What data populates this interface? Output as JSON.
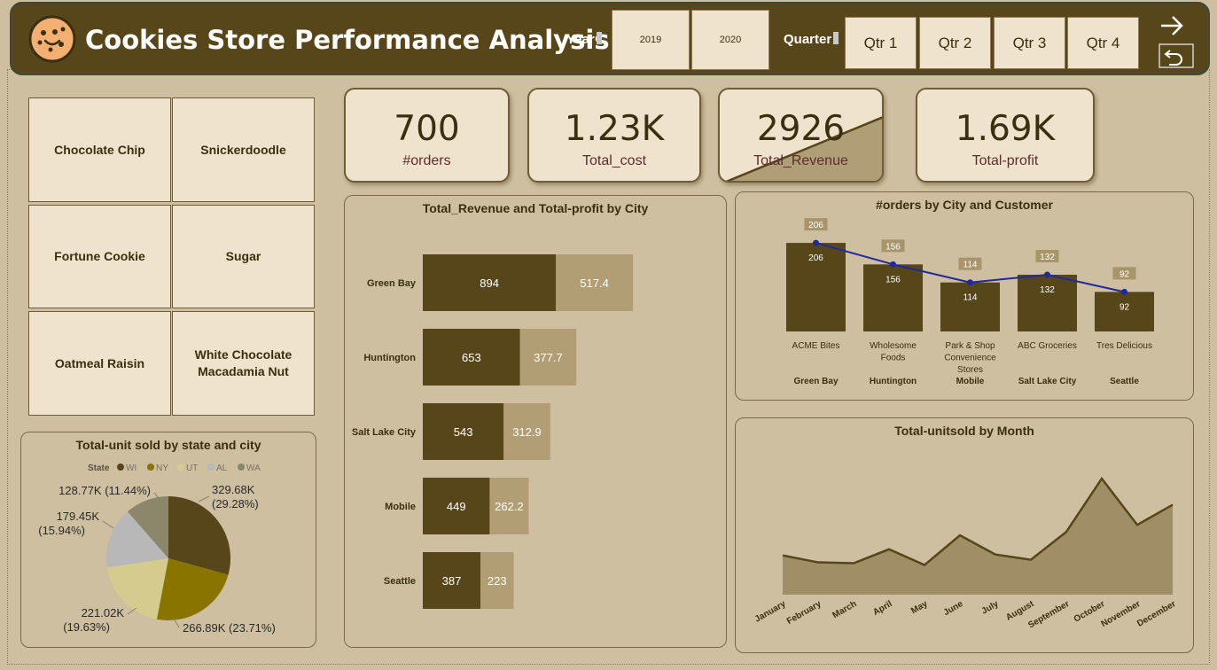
{
  "header": {
    "title": "Cookies Store Performance Analysis",
    "year_label": "Year",
    "year_options": [
      "2019",
      "2020"
    ],
    "quarter_label": "Quarter",
    "quarter_options": [
      "Qtr 1",
      "Qtr 2",
      "Qtr 3",
      "Qtr 4"
    ],
    "icons": [
      "cookie-logo",
      "arrow-right-icon",
      "undo-icon"
    ]
  },
  "products": [
    "Chocolate Chip",
    "Snickerdoodle",
    "Fortune Cookie",
    "Sugar",
    "Oatmeal Raisin",
    "White Chocolate Macadamia Nut"
  ],
  "kpis": [
    {
      "value": "700",
      "caption": "#orders"
    },
    {
      "value": "1.23K",
      "caption": "Total_cost"
    },
    {
      "value": "2926",
      "caption": "Total_Revenue"
    },
    {
      "value": "1.69K",
      "caption": "Total-profit"
    }
  ],
  "colors": {
    "dark": "#57461a",
    "light": "#b19e74",
    "olive": "#8a7400",
    "line": "#1f2a9e"
  },
  "chart_data": [
    {
      "type": "bar",
      "title": "Total_Revenue and Total-profit by City",
      "orientation": "horizontal",
      "stacked": true,
      "categories": [
        "Green Bay",
        "Huntington",
        "Salt Lake City",
        "Mobile",
        "Seattle"
      ],
      "series": [
        {
          "values": [
            894,
            653,
            543,
            449,
            387
          ]
        },
        {
          "values": [
            517.4,
            377.7,
            312.9,
            262.2,
            223
          ]
        }
      ]
    },
    {
      "type": "bar",
      "title": "#orders by City and Customer",
      "categories": [
        {
          "customer": "ACME Bites",
          "city": "Green Bay"
        },
        {
          "customer": "Wholesome Foods",
          "city": "Huntington"
        },
        {
          "customer": "Park & Shop Convenience Stores",
          "city": "Mobile"
        },
        {
          "customer": "ABC Groceries",
          "city": "Salt Lake City"
        },
        {
          "customer": "Tres Delicious",
          "city": "Seattle"
        }
      ],
      "bar_values": [
        206,
        156,
        114,
        132,
        92
      ],
      "line_values": [
        206,
        156,
        114,
        132,
        92
      ]
    },
    {
      "type": "pie",
      "title": "Total-unit sold by state and city",
      "legend_title": "State",
      "legend": [
        "WI",
        "NY",
        "UT",
        "AL",
        "WA"
      ],
      "slices": [
        {
          "state": "WI",
          "value": 329.68,
          "label": "329.68K",
          "pct": "(29.28%)",
          "color": "#57461a"
        },
        {
          "state": "NY",
          "value": 266.89,
          "label": "266.89K (23.71%)",
          "pct": "",
          "color": "#8a7400"
        },
        {
          "state": "UT",
          "value": 221.02,
          "label": "221.02K",
          "pct": "(19.63%)",
          "color": "#d6cb8e"
        },
        {
          "state": "AL",
          "value": 179.45,
          "label": "179.45K",
          "pct": "(15.94%)",
          "color": "#b8b8b8"
        },
        {
          "state": "WA",
          "value": 128.77,
          "label": "128.77K (11.44%)",
          "pct": "",
          "color": "#8c876a"
        }
      ]
    },
    {
      "type": "area",
      "title": "Total-unitsold by Month",
      "categories": [
        "January",
        "February",
        "March",
        "April",
        "May",
        "June",
        "July",
        "August",
        "September",
        "October",
        "November",
        "December"
      ],
      "values": [
        45,
        37,
        36,
        52,
        34,
        68,
        46,
        40,
        72,
        133,
        80,
        103
      ],
      "ylim": [
        0,
        140
      ]
    }
  ]
}
